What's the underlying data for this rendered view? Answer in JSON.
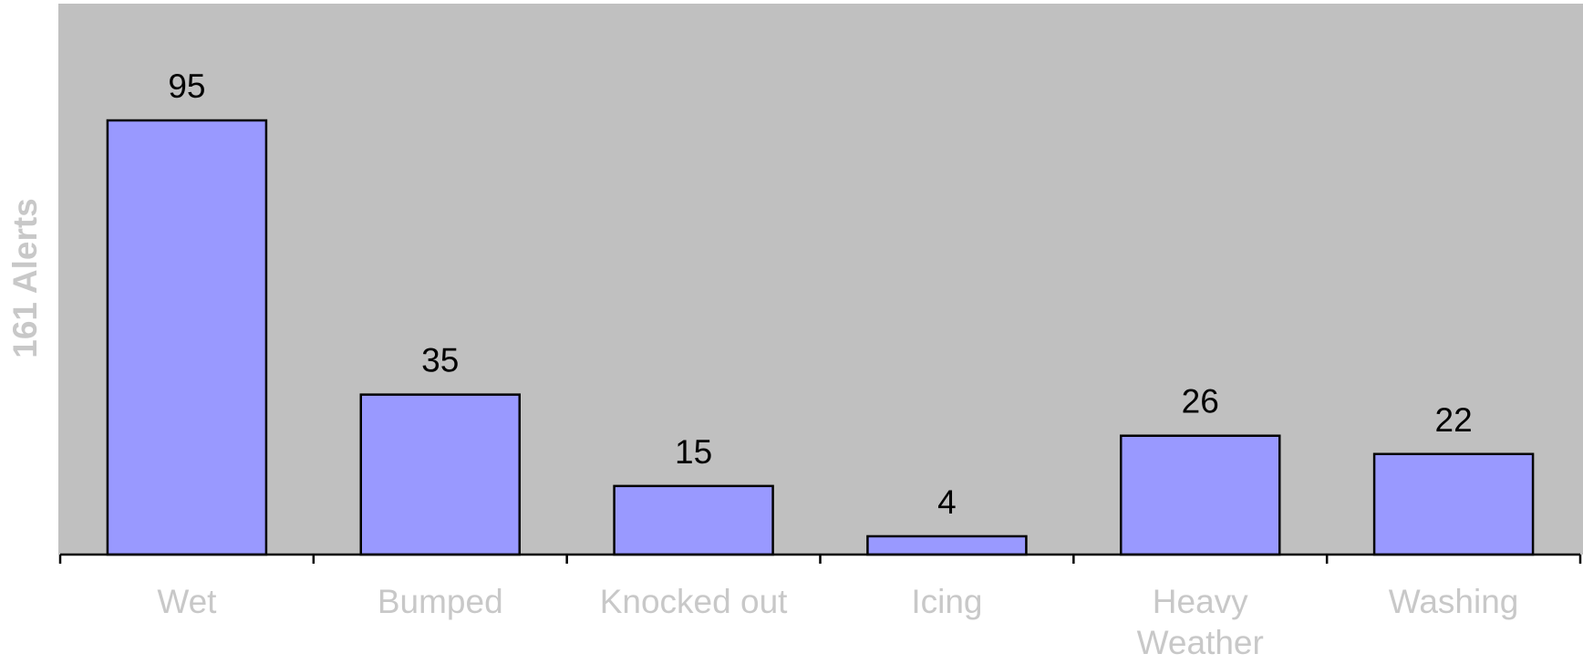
{
  "colors": {
    "plot_background": "#c0c0c0",
    "bar_fill": "#9999ff",
    "bar_outline": "#000000",
    "axis_text": "#c8c8c8",
    "data_label": "#000000"
  },
  "chart_data": {
    "type": "bar",
    "title": "",
    "xlabel": "",
    "ylabel": "161 Alerts",
    "categories": [
      "Wet",
      "Bumped",
      "Knocked out",
      "Icing",
      "Heavy Weather",
      "Washing"
    ],
    "category_lines": [
      [
        "Wet"
      ],
      [
        "Bumped"
      ],
      [
        "Knocked out"
      ],
      [
        "Icing"
      ],
      [
        "Heavy",
        "Weather"
      ],
      [
        "Washing"
      ]
    ],
    "values": [
      95,
      35,
      15,
      4,
      26,
      22
    ],
    "ylim": [
      0,
      120
    ],
    "grid": false,
    "legend": "none",
    "data_labels": true
  }
}
